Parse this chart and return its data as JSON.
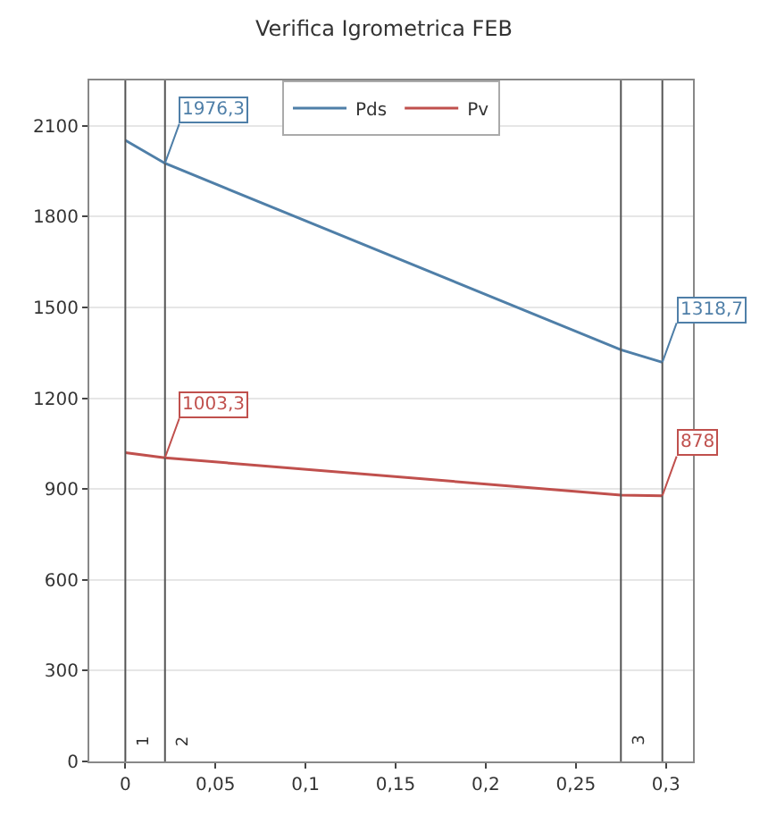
{
  "chart_data": {
    "type": "line",
    "title": "Verifica Igrometrica FEB",
    "x": [
      0,
      0.022,
      0.275,
      0.298
    ],
    "series": [
      {
        "name": "Pds",
        "color": "#4f7fa8",
        "values": [
          2052,
          1976.3,
          1360,
          1318.7
        ],
        "value_labels": [
          null,
          "1976,3",
          null,
          "1318,7"
        ]
      },
      {
        "name": "Pv",
        "color": "#c0504d",
        "values": [
          1020,
          1003.3,
          880,
          878
        ],
        "value_labels": [
          null,
          "1003,3",
          null,
          "878"
        ]
      }
    ],
    "xlim": [
      -0.02,
      0.315
    ],
    "ylim": [
      0,
      2250
    ],
    "xticks": [
      0,
      {
        "value": 0.05,
        "label": "0,05"
      },
      {
        "value": 0.1,
        "label": "0,1"
      },
      {
        "value": 0.15,
        "label": "0,15"
      },
      {
        "value": 0.2,
        "label": "0,2"
      },
      {
        "value": 0.25,
        "label": "0,25"
      },
      {
        "value": 0.3,
        "label": "0,3"
      }
    ],
    "yticks": [
      0,
      300,
      600,
      900,
      1200,
      1500,
      1800,
      2100
    ],
    "ref_lines": [
      {
        "axis": "x",
        "value": 0,
        "color": "#555555"
      },
      {
        "axis": "x",
        "value": 0.022,
        "color": "#555555"
      },
      {
        "axis": "x",
        "value": 0.275,
        "color": "#555555"
      },
      {
        "axis": "x",
        "value": 0.298,
        "color": "#555555"
      }
    ],
    "annotations": [
      {
        "text": "1",
        "x": 0.004,
        "y": 40
      },
      {
        "text": "2",
        "x": 0.026,
        "y": 40
      },
      {
        "text": "3",
        "x": 0.279,
        "y": 40
      }
    ],
    "grid": "y",
    "legend": "top",
    "marker": "none",
    "line_style": "solid"
  }
}
